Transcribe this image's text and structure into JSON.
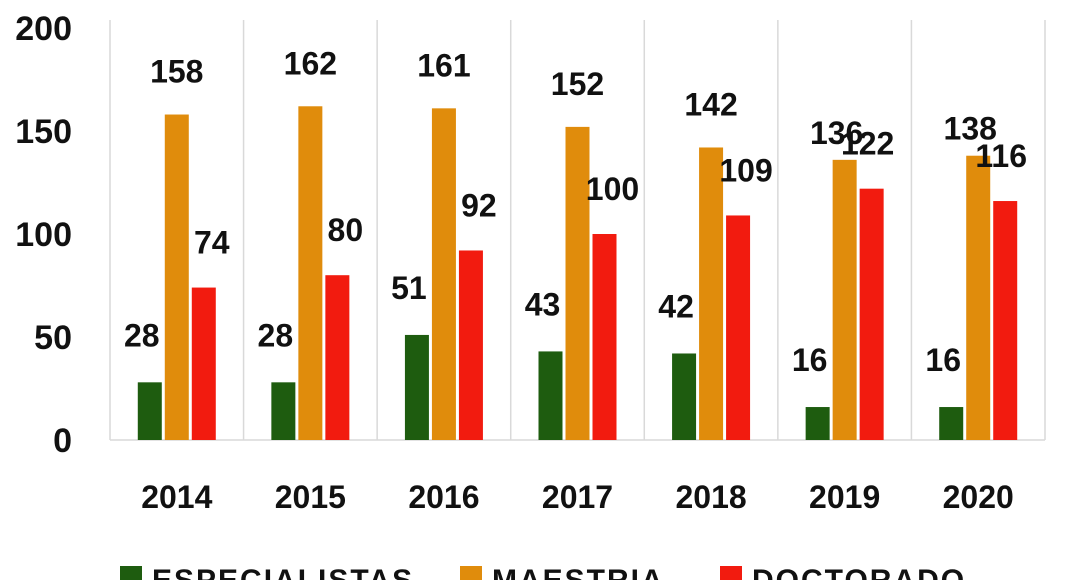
{
  "chart_data": {
    "type": "bar",
    "categories": [
      "2014",
      "2015",
      "2016",
      "2017",
      "2018",
      "2019",
      "2020"
    ],
    "series": [
      {
        "name": "ESPECIALISTAS",
        "color": "#1e5c0f",
        "values": [
          28,
          28,
          51,
          43,
          42,
          16,
          16
        ]
      },
      {
        "name": "MAESTRIA",
        "color": "#e08c0c",
        "values": [
          158,
          162,
          161,
          152,
          142,
          136,
          138
        ]
      },
      {
        "name": "DOCTORADO",
        "color": "#f21b0f",
        "values": [
          74,
          80,
          92,
          100,
          109,
          122,
          116
        ]
      }
    ],
    "title": "",
    "xlabel": "",
    "ylabel": "",
    "ylim": [
      0,
      200
    ],
    "yticks": [
      "0",
      "50",
      "100",
      "150",
      "200"
    ],
    "grid": "vertical category separators",
    "legend": "bottom"
  }
}
